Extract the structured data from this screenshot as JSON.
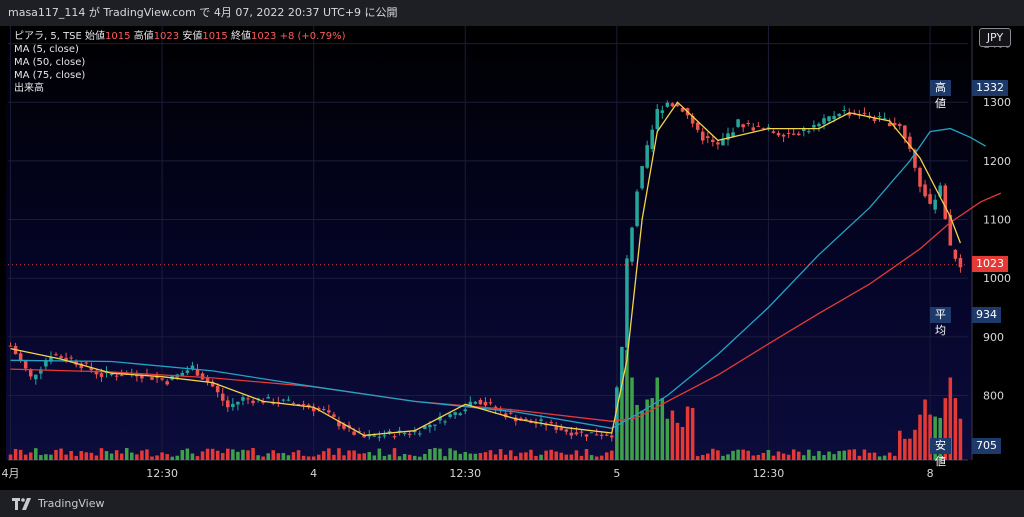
{
  "header": {
    "title": "masa117_114 が TradingView.com で 4月 07, 2022 20:37 UTC+9 に公開"
  },
  "legend": {
    "symbol": "ピアラ, 5, TSE",
    "open_label": "始値",
    "open_value": "1015",
    "high_label": "高値",
    "high_value": "1023",
    "low_label": "安値",
    "low_value": "1015",
    "close_label": "終値",
    "close_value": "1023",
    "change": "+8 (+0.79%)",
    "ma5": "MA (5, close)",
    "ma50": "MA (50, close)",
    "ma75": "MA (75, close)",
    "volume": "出来高"
  },
  "currency": "JPY",
  "tags": {
    "high": {
      "label": "高値",
      "value": "1332"
    },
    "last": {
      "value": "1023"
    },
    "avg": {
      "label": "平均",
      "value": "934"
    },
    "low": {
      "label": "安値",
      "value": "705"
    }
  },
  "footer": {
    "brand": "TradingView"
  },
  "colors": {
    "up": "#26a69a",
    "down": "#ef5350",
    "ma5": "#f5d547",
    "ma50": "#21a4c4",
    "ma75": "#e53935",
    "vol_up": "#3fa04a",
    "vol_down": "#e53935"
  },
  "chart_data": {
    "type": "candlestick",
    "yaxis_ticks": [
      1400,
      1300,
      1200,
      1100,
      1000,
      900,
      800
    ],
    "ylim": [
      690,
      1430
    ],
    "xaxis_ticks": [
      {
        "label": "4月",
        "index": 0
      },
      {
        "label": "12:30",
        "index": 30
      },
      {
        "label": "4",
        "index": 60
      },
      {
        "label": "12:30",
        "index": 90
      },
      {
        "label": "5",
        "index": 120
      },
      {
        "label": "12:30",
        "index": 150
      },
      {
        "label": "8",
        "index": 182
      }
    ],
    "key_points": [
      {
        "index": 0,
        "price": 885
      },
      {
        "index": 4,
        "price": 830
      },
      {
        "index": 8,
        "price": 870
      },
      {
        "index": 12,
        "price": 862
      },
      {
        "index": 18,
        "price": 835
      },
      {
        "index": 25,
        "price": 838
      },
      {
        "index": 31,
        "price": 825
      },
      {
        "index": 36,
        "price": 848
      },
      {
        "index": 40,
        "price": 815
      },
      {
        "index": 43,
        "price": 780
      },
      {
        "index": 46,
        "price": 795
      },
      {
        "index": 52,
        "price": 790
      },
      {
        "index": 58,
        "price": 785
      },
      {
        "index": 62,
        "price": 772
      },
      {
        "index": 67,
        "price": 740
      },
      {
        "index": 70,
        "price": 728
      },
      {
        "index": 76,
        "price": 735
      },
      {
        "index": 80,
        "price": 738
      },
      {
        "index": 84,
        "price": 755
      },
      {
        "index": 88,
        "price": 770
      },
      {
        "index": 92,
        "price": 795
      },
      {
        "index": 97,
        "price": 772
      },
      {
        "index": 102,
        "price": 755
      },
      {
        "index": 106,
        "price": 752
      },
      {
        "index": 110,
        "price": 740
      },
      {
        "index": 114,
        "price": 735
      },
      {
        "index": 119,
        "price": 735
      },
      {
        "index": 121,
        "price": 880
      },
      {
        "index": 122,
        "price": 1030
      },
      {
        "index": 124,
        "price": 1150
      },
      {
        "index": 126,
        "price": 1220
      },
      {
        "index": 128,
        "price": 1285
      },
      {
        "index": 130,
        "price": 1300
      },
      {
        "index": 133,
        "price": 1290
      },
      {
        "index": 137,
        "price": 1240
      },
      {
        "index": 140,
        "price": 1225
      },
      {
        "index": 144,
        "price": 1265
      },
      {
        "index": 148,
        "price": 1255
      },
      {
        "index": 152,
        "price": 1248
      },
      {
        "index": 156,
        "price": 1250
      },
      {
        "index": 160,
        "price": 1260
      },
      {
        "index": 164,
        "price": 1285
      },
      {
        "index": 168,
        "price": 1280
      },
      {
        "index": 172,
        "price": 1270
      },
      {
        "index": 176,
        "price": 1262
      },
      {
        "index": 178,
        "price": 1220
      },
      {
        "index": 180,
        "price": 1160
      },
      {
        "index": 182,
        "price": 1120
      },
      {
        "index": 184,
        "price": 1160
      },
      {
        "index": 186,
        "price": 1050
      },
      {
        "index": 188,
        "price": 1023
      }
    ],
    "volume_spikes": [
      {
        "index": 122,
        "value": 1.0
      },
      {
        "index": 126,
        "value": 0.55
      },
      {
        "index": 128,
        "value": 0.75
      },
      {
        "index": 131,
        "value": 0.45
      },
      {
        "index": 133,
        "value": 0.3
      },
      {
        "index": 181,
        "value": 0.55
      },
      {
        "index": 186,
        "value": 0.75
      }
    ],
    "ma5": [
      [
        0,
        880
      ],
      [
        10,
        862
      ],
      [
        20,
        838
      ],
      [
        30,
        832
      ],
      [
        40,
        822
      ],
      [
        50,
        790
      ],
      [
        60,
        780
      ],
      [
        70,
        732
      ],
      [
        80,
        740
      ],
      [
        90,
        785
      ],
      [
        100,
        760
      ],
      [
        110,
        745
      ],
      [
        119,
        736
      ],
      [
        122,
        860
      ],
      [
        125,
        1100
      ],
      [
        128,
        1250
      ],
      [
        132,
        1300
      ],
      [
        140,
        1235
      ],
      [
        150,
        1255
      ],
      [
        160,
        1255
      ],
      [
        166,
        1282
      ],
      [
        174,
        1268
      ],
      [
        180,
        1205
      ],
      [
        186,
        1105
      ],
      [
        188,
        1060
      ]
    ],
    "ma50": [
      [
        0,
        860
      ],
      [
        20,
        858
      ],
      [
        40,
        842
      ],
      [
        60,
        815
      ],
      [
        80,
        790
      ],
      [
        100,
        772
      ],
      [
        119,
        744
      ],
      [
        124,
        768
      ],
      [
        130,
        800
      ],
      [
        140,
        870
      ],
      [
        150,
        950
      ],
      [
        160,
        1040
      ],
      [
        170,
        1120
      ],
      [
        178,
        1200
      ],
      [
        182,
        1250
      ],
      [
        186,
        1255
      ],
      [
        190,
        1240
      ],
      [
        193,
        1225
      ]
    ],
    "ma75": [
      [
        0,
        845
      ],
      [
        20,
        840
      ],
      [
        40,
        830
      ],
      [
        60,
        815
      ],
      [
        80,
        790
      ],
      [
        100,
        775
      ],
      [
        119,
        756
      ],
      [
        124,
        762
      ],
      [
        130,
        790
      ],
      [
        140,
        835
      ],
      [
        150,
        888
      ],
      [
        160,
        940
      ],
      [
        170,
        990
      ],
      [
        180,
        1050
      ],
      [
        186,
        1095
      ],
      [
        192,
        1130
      ],
      [
        196,
        1145
      ]
    ]
  }
}
